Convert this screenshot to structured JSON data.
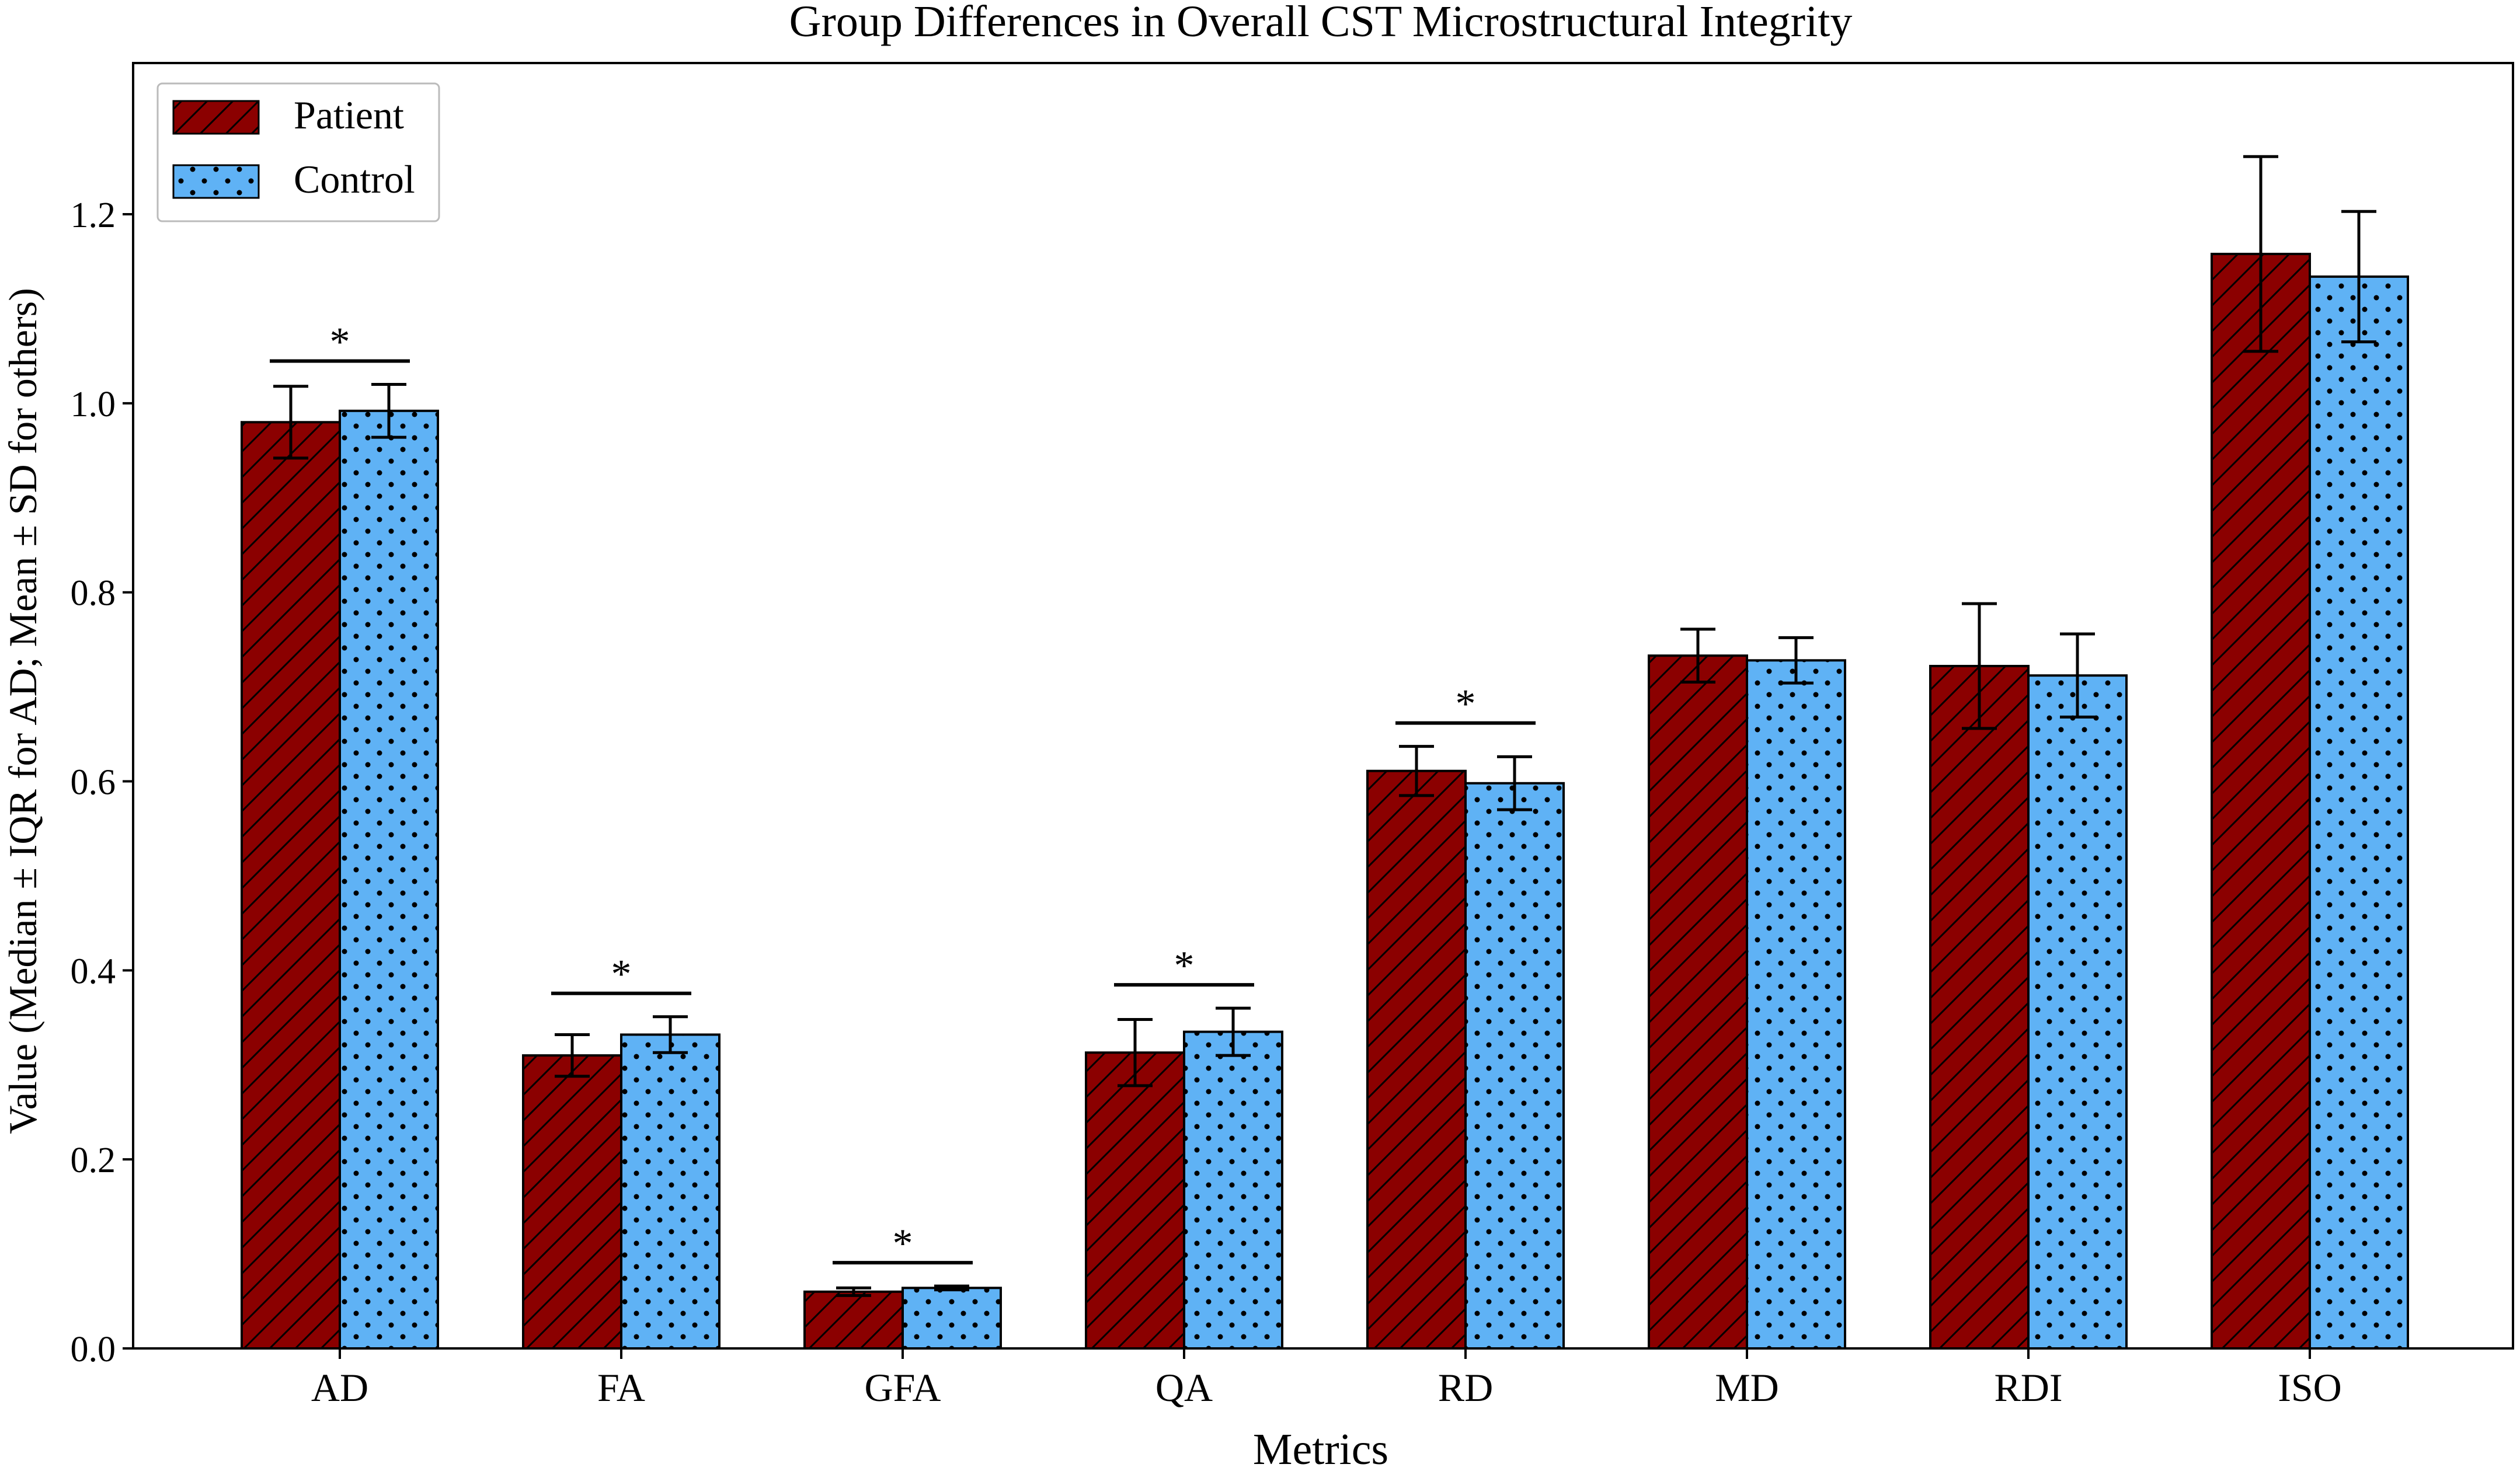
{
  "chart_data": {
    "type": "bar",
    "title": "Group Differences in Overall CST Microstructural Integrity",
    "xlabel": "Metrics",
    "ylabel": "Value (Median ± IQR for AD; Mean ± SD for others)",
    "ylim": [
      0,
      1.36
    ],
    "yticks": [
      0.0,
      0.2,
      0.4,
      0.6,
      0.8,
      1.0,
      1.2
    ],
    "ytick_labels": [
      "0.0",
      "0.2",
      "0.4",
      "0.6",
      "0.8",
      "1.0",
      "1.2"
    ],
    "categories": [
      "AD",
      "FA",
      "GFA",
      "QA",
      "RD",
      "MD",
      "RDI",
      "ISO"
    ],
    "series": [
      {
        "name": "Patient",
        "color": "#8b0000",
        "hatch": "diagonal",
        "values": [
          0.98,
          0.31,
          0.06,
          0.313,
          0.611,
          0.733,
          0.722,
          1.158
        ],
        "errors": [
          0.038,
          0.022,
          0.004,
          0.035,
          0.026,
          0.028,
          0.066,
          0.103
        ]
      },
      {
        "name": "Control",
        "color": "#5fb2f5",
        "hatch": "dots",
        "values": [
          0.992,
          0.332,
          0.064,
          0.335,
          0.598,
          0.728,
          0.712,
          1.134
        ],
        "errors": [
          0.028,
          0.019,
          0.002,
          0.025,
          0.028,
          0.024,
          0.044,
          0.069
        ]
      }
    ],
    "significance": [
      {
        "category": "AD",
        "label": "*"
      },
      {
        "category": "FA",
        "label": "*"
      },
      {
        "category": "GFA",
        "label": "*"
      },
      {
        "category": "QA",
        "label": "*"
      },
      {
        "category": "RD",
        "label": "*"
      }
    ],
    "legend_position": "top-left",
    "grid": false
  }
}
